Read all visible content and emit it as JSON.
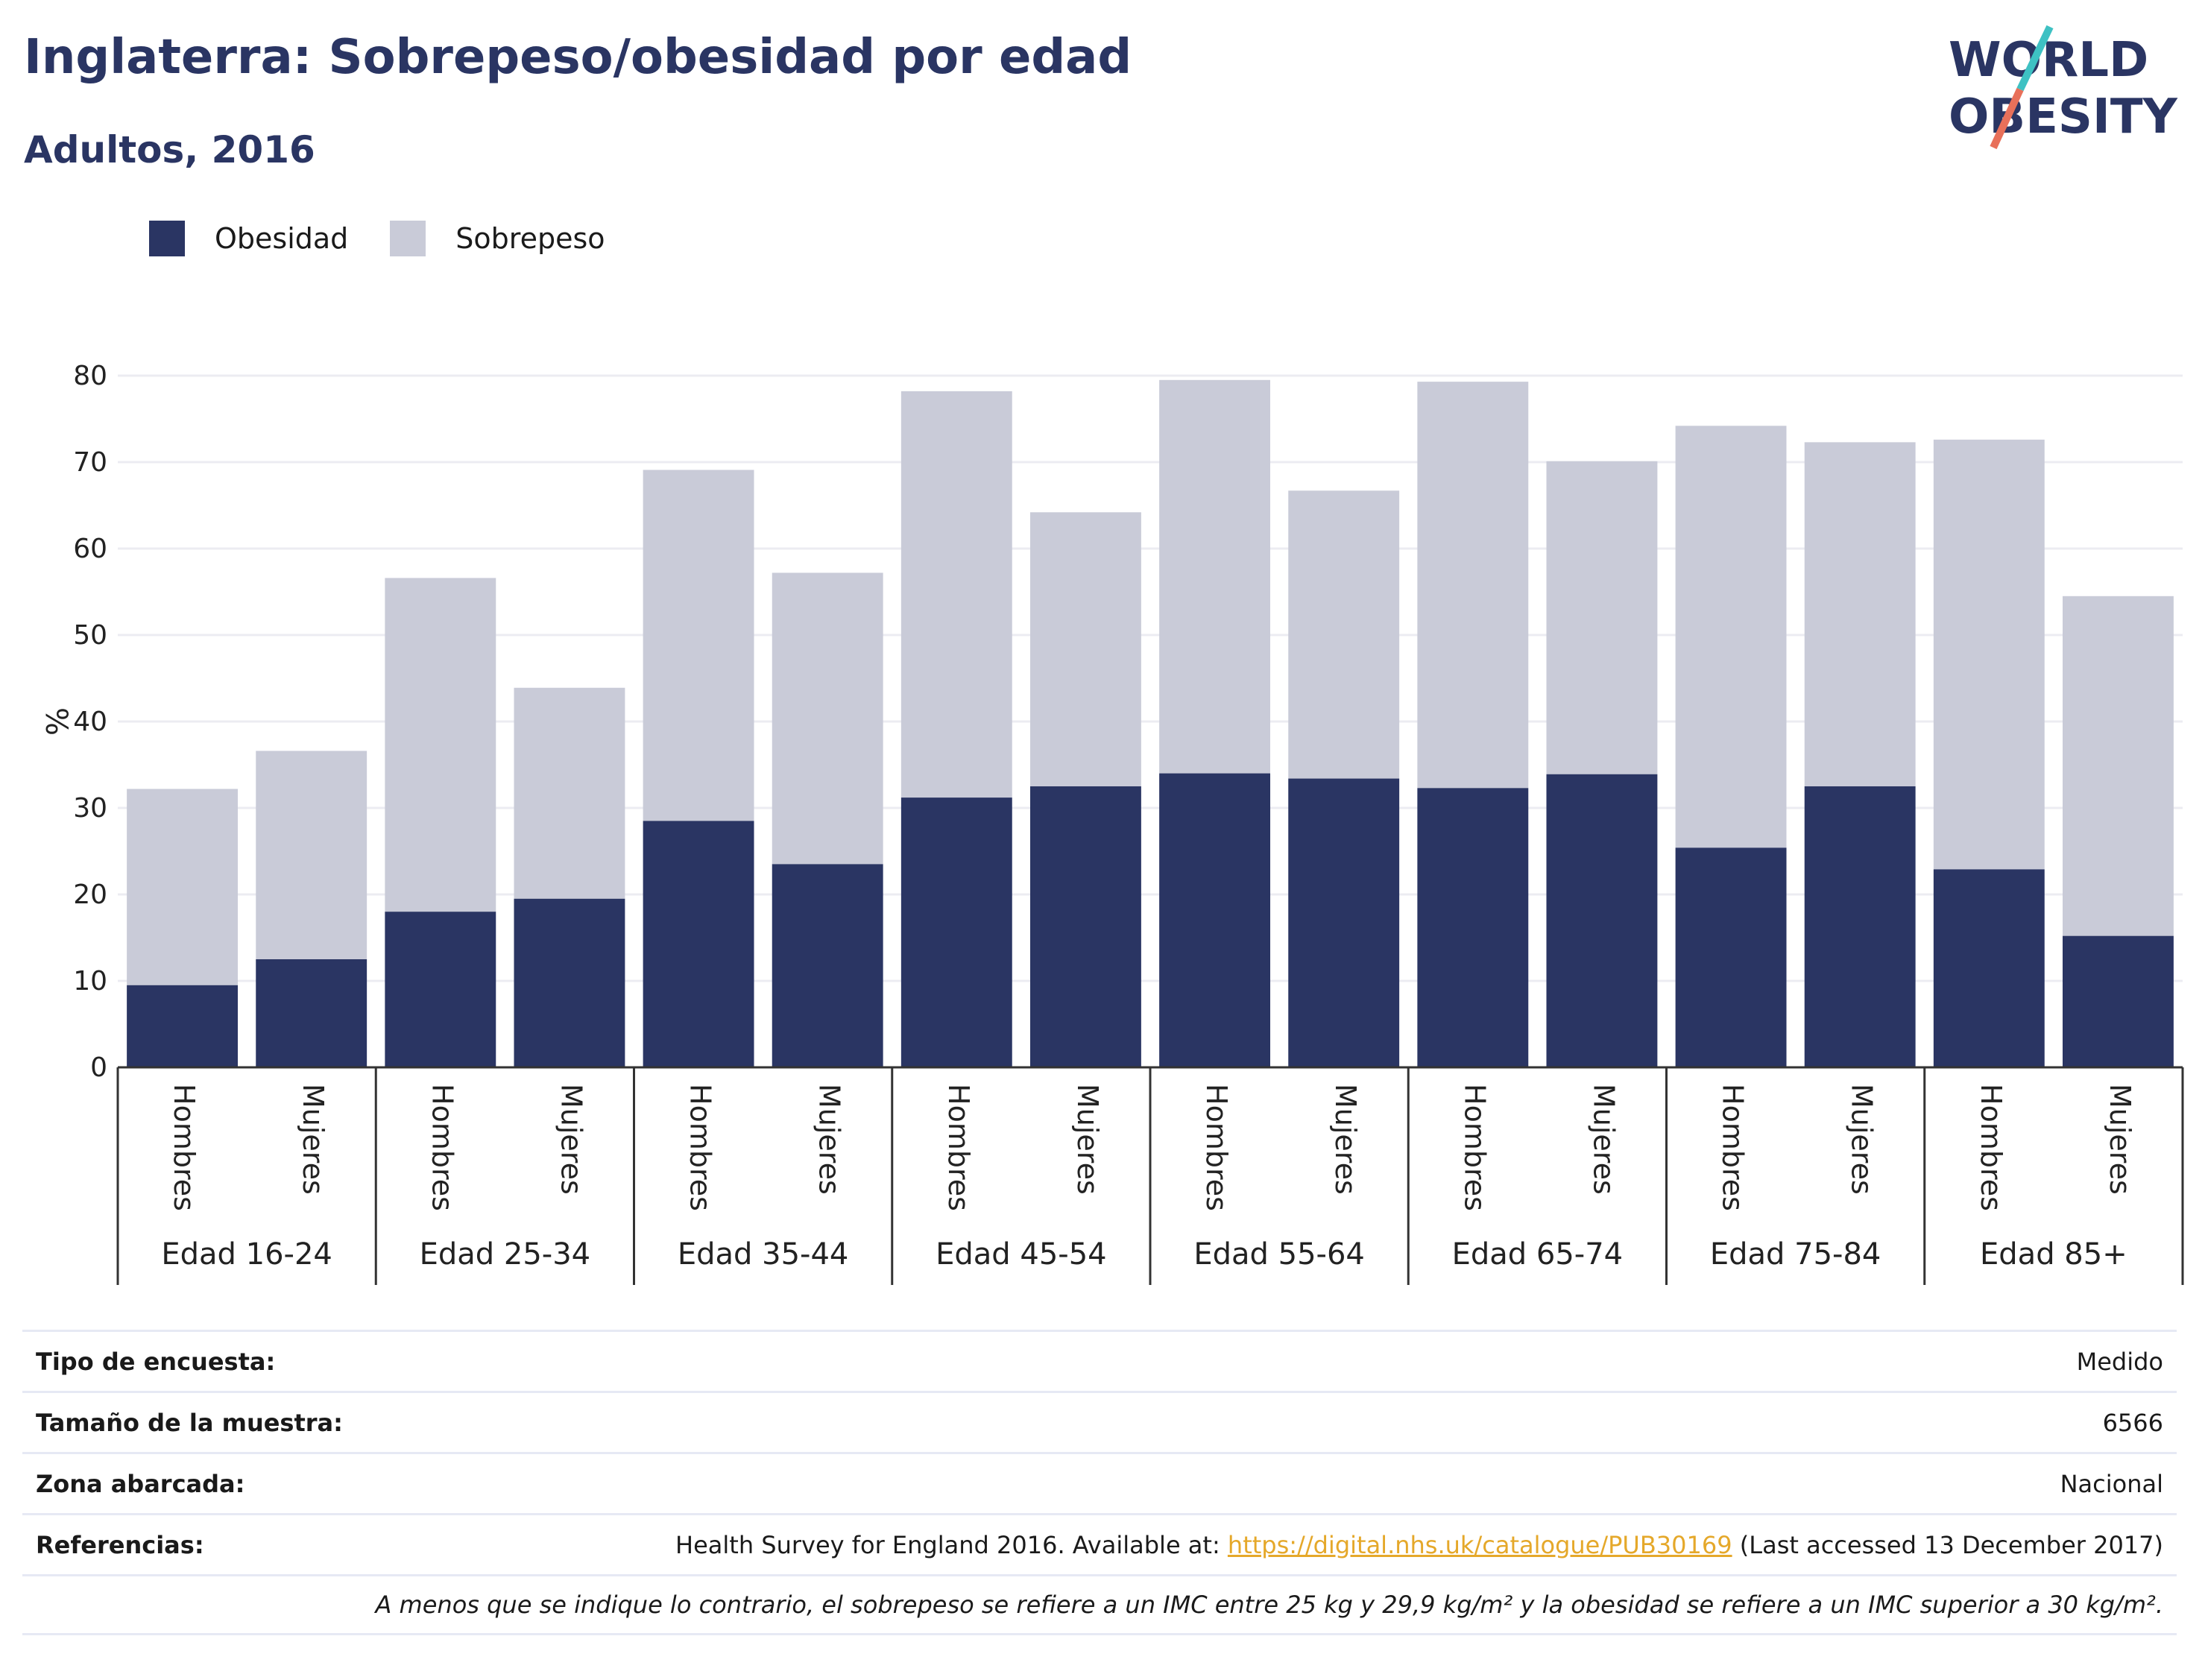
{
  "header": {
    "title": "Inglaterra: Sobrepeso/obesidad por edad",
    "subtitle": "Adultos, 2016",
    "logo_line1": "WORLD",
    "logo_line2": "OBESITY"
  },
  "colors": {
    "obesidad": "#2a3563",
    "sobrepeso": "#c9cbd8",
    "title": "#2a3563",
    "logo_teal": "#3ec1c3",
    "logo_coral": "#e8705a",
    "link": "#e5a82a"
  },
  "legend": [
    {
      "label": "Obesidad",
      "color": "#2a3563"
    },
    {
      "label": "Sobrepeso",
      "color": "#c9cbd8"
    }
  ],
  "chart_data": {
    "type": "bar",
    "stacked": true,
    "ylabel": "%",
    "ylim": [
      0,
      80
    ],
    "yticks": [
      0,
      10,
      20,
      30,
      40,
      50,
      60,
      70,
      80
    ],
    "grid": true,
    "legend_position": "top-left",
    "groups": [
      "Edad 16-24",
      "Edad 25-34",
      "Edad 35-44",
      "Edad 45-54",
      "Edad 55-64",
      "Edad 65-74",
      "Edad 75-84",
      "Edad 85+"
    ],
    "subcategories": [
      "Hombres",
      "Mujeres"
    ],
    "series": [
      {
        "name": "Obesidad",
        "values": [
          9.5,
          12.5,
          18,
          19.5,
          28.5,
          23.5,
          31.2,
          32.5,
          34,
          33.4,
          32.3,
          33.9,
          25.4,
          32.5,
          22.9,
          15.2
        ]
      },
      {
        "name": "Sobrepeso",
        "values": [
          22.7,
          24.1,
          38.6,
          24.4,
          40.6,
          33.7,
          47,
          31.7,
          45.5,
          33.3,
          47,
          36.2,
          48.8,
          39.8,
          49.7,
          39.3
        ]
      }
    ]
  },
  "info": {
    "rows": [
      {
        "key": "Tipo de encuesta:",
        "value": "Medido"
      },
      {
        "key": "Tamaño de la muestra:",
        "value": "6566"
      },
      {
        "key": "Zona abarcada:",
        "value": "Nacional"
      }
    ],
    "ref_key": "Referencias:",
    "ref_prefix": "Health Survey for England 2016. Available at: ",
    "ref_link": "https://digital.nhs.uk/catalogue/PUB30169",
    "ref_suffix": " (Last accessed 13 December 2017)",
    "footnote": "A menos que se indique lo contrario, el sobrepeso se refiere a un IMC entre 25 kg y 29,9 kg/m² y la obesidad se refiere a un IMC superior a 30 kg/m²."
  }
}
